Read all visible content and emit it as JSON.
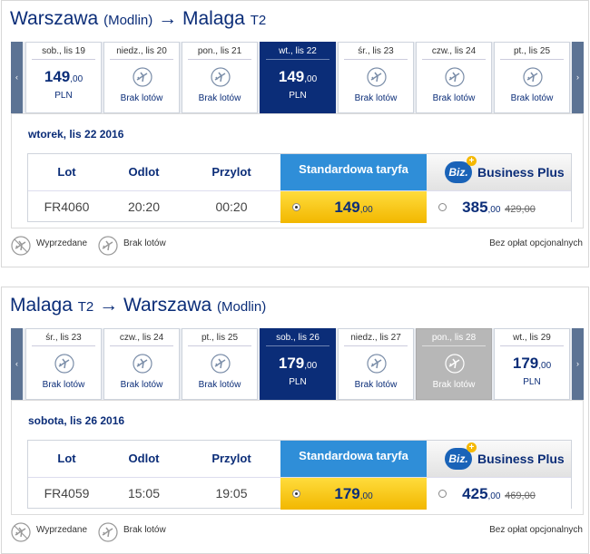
{
  "sections": [
    {
      "title": {
        "from": "Warszawa",
        "from_note": "(Modlin)",
        "arrow": "→",
        "to": "Malaga",
        "to_note": "T2"
      },
      "days": [
        {
          "label": "sob., lis 19",
          "price": 149,
          "cents": ",00",
          "currency": "PLN"
        },
        {
          "label": "niedz., lis 20",
          "status": "Brak lotów"
        },
        {
          "label": "pon., lis 21",
          "status": "Brak lotów"
        },
        {
          "label": "wt., lis 22",
          "price": 149,
          "cents": ",00",
          "currency": "PLN",
          "state": "selected"
        },
        {
          "label": "śr., lis 23",
          "status": "Brak lotów"
        },
        {
          "label": "czw., lis 24",
          "status": "Brak lotów"
        },
        {
          "label": "pt., lis 25",
          "status": "Brak lotów"
        }
      ],
      "selected_date": "wtorek, lis 22 2016",
      "table": {
        "headers": [
          "Lot",
          "Odlot",
          "Przylot",
          "Standardowa taryfa",
          "Business Plus"
        ],
        "badge": "Biz.",
        "row": {
          "flight": "FR4060",
          "departure": "20:20",
          "arrival": "00:20",
          "standard_price": 149,
          "standard_cents": ",00",
          "business_price": 385,
          "business_cents": ",00",
          "business_old_price": 429,
          "business_old_cents": ",00"
        }
      },
      "legend": {
        "sold_out": "Wyprzedane",
        "no_flights": "Brak lotów",
        "note": "Bez opłat opcjonalnych"
      }
    },
    {
      "title": {
        "from": "Malaga",
        "from_note": "T2",
        "arrow": "→",
        "to": "Warszawa",
        "to_note": "(Modlin)"
      },
      "days": [
        {
          "label": "śr., lis 23",
          "status": "Brak lotów"
        },
        {
          "label": "czw., lis 24",
          "status": "Brak lotów"
        },
        {
          "label": "pt., lis 25",
          "status": "Brak lotów"
        },
        {
          "label": "sob., lis 26",
          "price": 179,
          "cents": ",00",
          "currency": "PLN",
          "state": "selected"
        },
        {
          "label": "niedz., lis 27",
          "status": "Brak lotów"
        },
        {
          "label": "pon., lis 28",
          "status": "Brak lotów",
          "state": "unavailable"
        },
        {
          "label": "wt., lis 29",
          "price": 179,
          "cents": ",00",
          "currency": "PLN"
        }
      ],
      "selected_date": "sobota, lis 26 2016",
      "table": {
        "headers": [
          "Lot",
          "Odlot",
          "Przylot",
          "Standardowa taryfa",
          "Business Plus"
        ],
        "badge": "Biz.",
        "row": {
          "flight": "FR4059",
          "departure": "15:05",
          "arrival": "19:05",
          "standard_price": 179,
          "standard_cents": ",00",
          "business_price": 425,
          "business_cents": ",00",
          "business_old_price": 469,
          "business_old_cents": ",00"
        }
      },
      "legend": {
        "sold_out": "Wyprzedane",
        "no_flights": "Brak lotów",
        "note": "Bez opłat opcjonalnych"
      }
    }
  ]
}
